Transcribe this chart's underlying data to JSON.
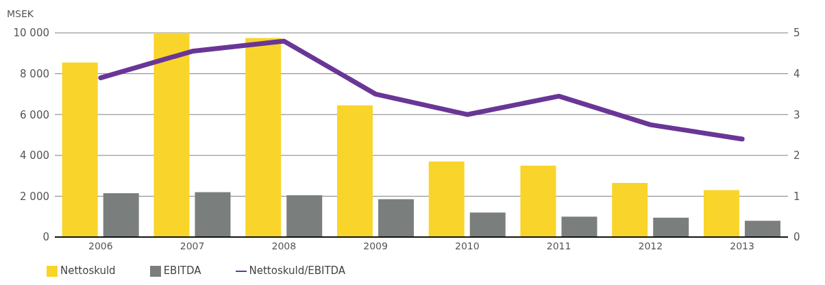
{
  "chart_data": {
    "type": "bar",
    "ylabel": "MSEK",
    "categories": [
      "2006",
      "2007",
      "2008",
      "2009",
      "2010",
      "2011",
      "2012",
      "2013"
    ],
    "series": [
      {
        "name": "Nettoskuld",
        "color": "#f9d42a",
        "values": [
          8550,
          10000,
          9750,
          6450,
          3700,
          3500,
          2650,
          2300
        ]
      },
      {
        "name": "EBITDA",
        "color": "#7a7f7e",
        "values": [
          2150,
          2200,
          2050,
          1850,
          1200,
          1000,
          950,
          800
        ]
      },
      {
        "name": "Nettoskuld/EBITDA",
        "type": "line",
        "axis": "y2",
        "color": "#693696",
        "values": [
          3.9,
          4.55,
          4.8,
          3.5,
          3.0,
          3.45,
          2.75,
          2.4
        ]
      }
    ],
    "ylim": [
      0,
      10000
    ],
    "yticks": [
      {
        "value": 0,
        "label": "0"
      },
      {
        "value": 2000,
        "label": "2 000"
      },
      {
        "value": 4000,
        "label": "4 000"
      },
      {
        "value": 6000,
        "label": "6 000"
      },
      {
        "value": 8000,
        "label": "8 000"
      },
      {
        "value": 10000,
        "label": "10 000"
      }
    ],
    "y2lim": [
      0,
      5
    ],
    "y2ticks": [
      0,
      1,
      2,
      3,
      4,
      5
    ],
    "grid": "y",
    "legend": "bottom",
    "marker": "none",
    "line_style": "solid"
  }
}
